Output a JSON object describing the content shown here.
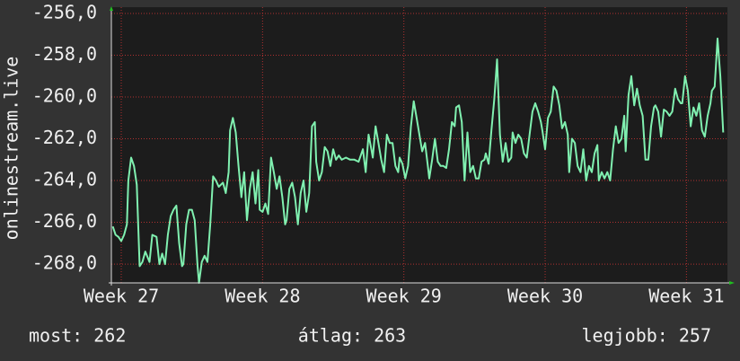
{
  "chart_data": {
    "type": "line",
    "ylabel": "onlinestream.live",
    "color": "#80f0b0",
    "ylim": [
      -268.9,
      -255.7
    ],
    "yticks": [
      {
        "value": -256,
        "label": "-256,0"
      },
      {
        "value": -258,
        "label": "-258,0"
      },
      {
        "value": -260,
        "label": "-260,0"
      },
      {
        "value": -262,
        "label": "-262,0"
      },
      {
        "value": -264,
        "label": "-264,0"
      },
      {
        "value": -266,
        "label": "-266,0"
      },
      {
        "value": -268,
        "label": "-268,0"
      }
    ],
    "xlim": [
      26.93,
      31.29
    ],
    "xticks": [
      {
        "value": 27,
        "label": "Week 27"
      },
      {
        "value": 28,
        "label": "Week 28"
      },
      {
        "value": 29,
        "label": "Week 29"
      },
      {
        "value": 30,
        "label": "Week 30"
      },
      {
        "value": 31,
        "label": "Week 31"
      }
    ],
    "grid": true,
    "x": [
      26.94,
      26.96,
      26.98,
      27.0,
      27.02,
      27.04,
      27.05,
      27.07,
      27.09,
      27.11,
      27.13,
      27.15,
      27.17,
      27.2,
      27.22,
      27.25,
      27.27,
      27.29,
      27.31,
      27.33,
      27.35,
      27.37,
      27.39,
      27.41,
      27.43,
      27.44,
      27.46,
      27.48,
      27.5,
      27.52,
      27.54,
      27.55,
      27.57,
      27.59,
      27.61,
      27.63,
      27.65,
      27.67,
      27.69,
      27.72,
      27.74,
      27.76,
      27.77,
      27.79,
      27.81,
      27.83,
      27.85,
      27.87,
      27.89,
      27.91,
      27.93,
      27.95,
      27.97,
      27.98,
      28.0,
      28.02,
      28.04,
      28.06,
      28.08,
      28.1,
      28.12,
      28.14,
      28.16,
      28.17,
      28.19,
      28.21,
      28.23,
      28.25,
      28.27,
      28.29,
      28.31,
      28.33,
      28.35,
      28.37,
      28.38,
      28.4,
      28.42,
      28.44,
      28.46,
      28.48,
      28.5,
      28.52,
      28.54,
      28.56,
      28.59,
      28.62,
      28.65,
      28.68,
      28.71,
      28.73,
      28.75,
      28.77,
      28.78,
      28.8,
      28.82,
      28.84,
      28.86,
      28.88,
      28.9,
      28.92,
      28.94,
      28.96,
      28.97,
      28.99,
      29.01,
      29.03,
      29.05,
      29.07,
      29.09,
      29.11,
      29.13,
      29.15,
      29.17,
      29.18,
      29.2,
      29.22,
      29.24,
      29.26,
      29.28,
      29.3,
      29.32,
      29.34,
      29.36,
      29.37,
      29.39,
      29.41,
      29.43,
      29.45,
      29.47,
      29.49,
      29.51,
      29.53,
      29.55,
      29.57,
      29.58,
      29.6,
      29.62,
      29.64,
      29.66,
      29.68,
      29.7,
      29.72,
      29.74,
      29.76,
      29.77,
      29.79,
      29.81,
      29.83,
      29.85,
      29.87,
      29.89,
      29.91,
      29.93,
      29.95,
      29.97,
      29.98,
      30.0,
      30.02,
      30.04,
      30.06,
      30.08,
      30.1,
      30.12,
      30.14,
      30.16,
      30.17,
      30.19,
      30.21,
      30.23,
      30.25,
      30.27,
      30.29,
      30.31,
      30.33,
      30.35,
      30.37,
      30.38,
      30.4,
      30.42,
      30.44,
      30.46,
      30.48,
      30.5,
      30.52,
      30.54,
      30.56,
      30.57,
      30.59,
      30.61,
      30.63,
      30.65,
      30.67,
      30.69,
      30.71,
      30.73,
      30.75,
      30.77,
      30.78,
      30.8,
      30.82,
      30.84,
      30.86,
      30.88,
      30.9,
      30.92,
      30.94,
      30.96,
      30.97,
      30.99,
      31.01,
      31.03,
      31.05,
      31.07,
      31.09,
      31.11,
      31.13,
      31.15,
      31.17,
      31.18,
      31.2,
      31.22,
      31.24,
      31.26
    ],
    "values": [
      -266.2,
      -266.6,
      -266.7,
      -266.9,
      -266.6,
      -266.1,
      -264.0,
      -262.9,
      -263.3,
      -264.2,
      -268.1,
      -267.9,
      -267.4,
      -267.9,
      -266.6,
      -266.7,
      -268.0,
      -267.5,
      -268.0,
      -266.6,
      -265.7,
      -265.4,
      -265.2,
      -267.0,
      -268.1,
      -268.0,
      -266.1,
      -265.4,
      -265.4,
      -265.9,
      -268.1,
      -268.9,
      -267.9,
      -267.6,
      -267.9,
      -266.1,
      -263.8,
      -264.0,
      -264.3,
      -264.1,
      -264.6,
      -263.6,
      -261.6,
      -261.0,
      -261.7,
      -263.3,
      -264.8,
      -263.6,
      -265.9,
      -264.4,
      -263.6,
      -265.1,
      -263.5,
      -265.4,
      -265.5,
      -265.1,
      -265.6,
      -262.9,
      -263.6,
      -264.4,
      -263.8,
      -264.8,
      -266.1,
      -265.9,
      -264.4,
      -264.1,
      -264.8,
      -266.1,
      -264.6,
      -264.0,
      -265.5,
      -264.6,
      -261.4,
      -261.2,
      -263.1,
      -264.0,
      -263.6,
      -262.4,
      -262.6,
      -263.3,
      -262.5,
      -263.0,
      -262.8,
      -263.0,
      -262.9,
      -263.0,
      -263.0,
      -263.1,
      -262.5,
      -263.6,
      -261.8,
      -262.5,
      -262.9,
      -261.4,
      -262.2,
      -263.0,
      -263.6,
      -261.8,
      -262.2,
      -262.2,
      -263.3,
      -263.6,
      -262.9,
      -263.2,
      -263.9,
      -263.3,
      -261.4,
      -260.2,
      -261.0,
      -261.8,
      -262.6,
      -262.2,
      -263.3,
      -263.9,
      -263.0,
      -262.0,
      -263.1,
      -263.3,
      -263.3,
      -263.4,
      -262.5,
      -261.2,
      -261.4,
      -260.5,
      -260.4,
      -261.2,
      -264.0,
      -261.7,
      -263.6,
      -263.3,
      -263.9,
      -263.9,
      -263.1,
      -263.0,
      -262.7,
      -263.2,
      -261.6,
      -260.1,
      -258.2,
      -261.8,
      -263.1,
      -262.2,
      -263.1,
      -262.9,
      -261.7,
      -262.2,
      -261.8,
      -262.0,
      -262.7,
      -262.9,
      -261.8,
      -260.7,
      -260.3,
      -260.7,
      -261.2,
      -261.6,
      -262.5,
      -261.0,
      -260.7,
      -259.5,
      -259.7,
      -260.4,
      -261.5,
      -261.2,
      -261.8,
      -263.6,
      -262.0,
      -262.2,
      -263.3,
      -263.6,
      -262.5,
      -264.0,
      -263.3,
      -263.6,
      -262.7,
      -262.3,
      -264.0,
      -263.6,
      -263.9,
      -263.6,
      -264.0,
      -262.5,
      -261.4,
      -262.2,
      -262.0,
      -260.9,
      -262.6,
      -259.9,
      -259.0,
      -260.4,
      -259.6,
      -260.4,
      -260.9,
      -263.0,
      -263.0,
      -261.4,
      -260.5,
      -260.4,
      -260.7,
      -261.9,
      -260.6,
      -260.7,
      -260.9,
      -260.7,
      -259.6,
      -260.1,
      -260.3,
      -260.3,
      -259.0,
      -259.7,
      -261.4,
      -260.5,
      -260.9,
      -260.3,
      -261.6,
      -261.9,
      -260.9,
      -260.3,
      -259.7,
      -259.5,
      -257.2,
      -259.0,
      -261.7
    ],
    "footer": [
      "most: 262",
      "átlag: 263",
      "legjobb: 257"
    ]
  }
}
